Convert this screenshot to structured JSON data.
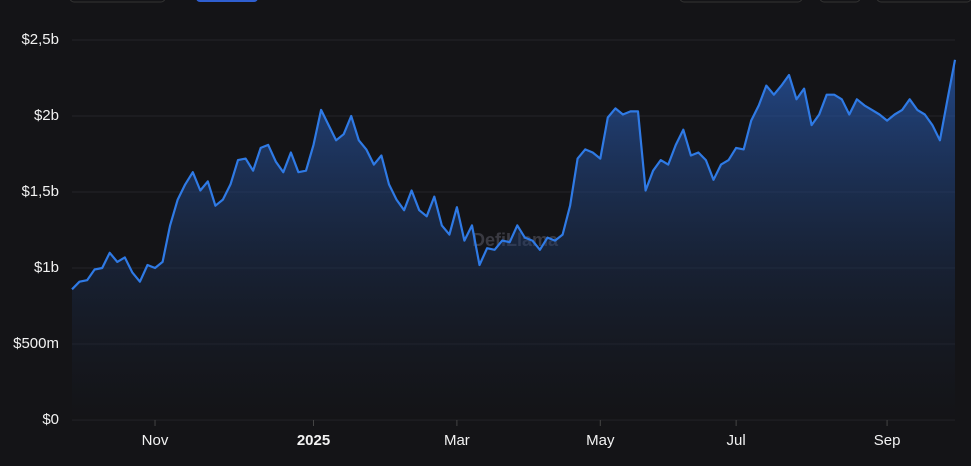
{
  "chart_data": {
    "type": "area",
    "watermark": "DefiLlama",
    "values": [
      0.86,
      0.91,
      0.92,
      0.99,
      1.0,
      1.1,
      1.04,
      1.07,
      0.97,
      0.91,
      1.02,
      1.0,
      1.04,
      1.28,
      1.45,
      1.55,
      1.63,
      1.51,
      1.57,
      1.41,
      1.45,
      1.55,
      1.71,
      1.72,
      1.64,
      1.79,
      1.81,
      1.7,
      1.63,
      1.76,
      1.63,
      1.64,
      1.81,
      2.04,
      1.94,
      1.84,
      1.88,
      2.0,
      1.84,
      1.78,
      1.68,
      1.74,
      1.55,
      1.45,
      1.38,
      1.51,
      1.38,
      1.34,
      1.47,
      1.28,
      1.22,
      1.4,
      1.18,
      1.28,
      1.02,
      1.13,
      1.12,
      1.18,
      1.17,
      1.28,
      1.2,
      1.18,
      1.12,
      1.2,
      1.18,
      1.22,
      1.41,
      1.72,
      1.78,
      1.76,
      1.72,
      1.99,
      2.05,
      2.01,
      2.03,
      2.03,
      1.51,
      1.64,
      1.71,
      1.68,
      1.81,
      1.91,
      1.74,
      1.76,
      1.71,
      1.58,
      1.68,
      1.71,
      1.79,
      1.78,
      1.97,
      2.07,
      2.2,
      2.14,
      2.2,
      2.27,
      2.11,
      2.18,
      1.94,
      2.01,
      2.14,
      2.14,
      2.11,
      2.01,
      2.11,
      2.07,
      2.04,
      2.01,
      1.97,
      2.01,
      2.04,
      2.11,
      2.04,
      2.01,
      1.94,
      1.84,
      2.11,
      2.37
    ],
    "color": "#2f7ae5",
    "xlim": [
      0,
      117
    ],
    "xticks": [
      {
        "value": 11,
        "label": "Nov"
      },
      {
        "value": 32,
        "label": "2025"
      },
      {
        "value": 51,
        "label": "Mar"
      },
      {
        "value": 70,
        "label": "May"
      },
      {
        "value": 88,
        "label": "Jul"
      },
      {
        "value": 108,
        "label": "Sep"
      }
    ],
    "ylim": [
      0,
      2.5
    ],
    "yticks": [
      {
        "value": 0,
        "label": "$0"
      },
      {
        "value": 0.5,
        "label": "$500m"
      },
      {
        "value": 1,
        "label": "$1b"
      },
      {
        "value": 1.5,
        "label": "$1,5b"
      },
      {
        "value": 2,
        "label": "$2b"
      },
      {
        "value": 2.5,
        "label": "$2,5b"
      }
    ],
    "grid": true
  }
}
